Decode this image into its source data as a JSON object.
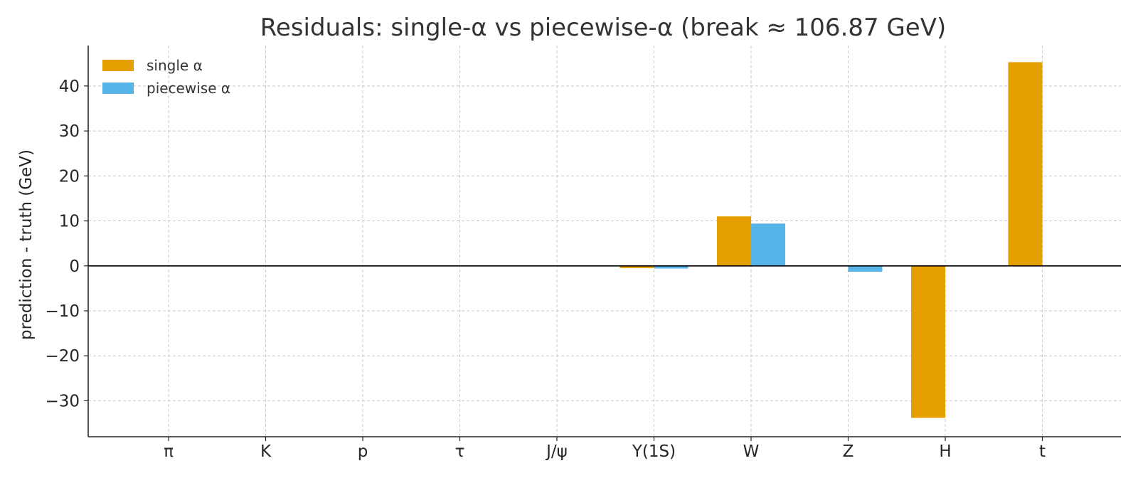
{
  "chart_data": {
    "type": "bar",
    "title": "Residuals: single-α vs piecewise-α (break ≈ 106.87 GeV)",
    "xlabel": "",
    "ylabel": "prediction - truth (GeV)",
    "categories": [
      "π",
      "K",
      "p",
      "τ",
      "J/ψ",
      "Υ(1S)",
      "W",
      "Z",
      "H",
      "t"
    ],
    "series": [
      {
        "name": "single α",
        "color": "#E69F00",
        "values": [
          0,
          0,
          0,
          0,
          0,
          -0.5,
          11.0,
          0,
          -33.8,
          45.3
        ]
      },
      {
        "name": "piecewise α",
        "color": "#56B4E9",
        "values": [
          0,
          0,
          0,
          0,
          0,
          -0.6,
          9.4,
          -1.3,
          0,
          0
        ]
      }
    ],
    "ylim": [
      -38,
      49
    ],
    "yticks": [
      -30,
      -20,
      -10,
      0,
      10,
      20,
      30,
      40
    ],
    "ytick_labels": [
      "−30",
      "−20",
      "−10",
      "0",
      "10",
      "20",
      "30",
      "40"
    ],
    "grid": true,
    "legend_position": "top-left"
  }
}
